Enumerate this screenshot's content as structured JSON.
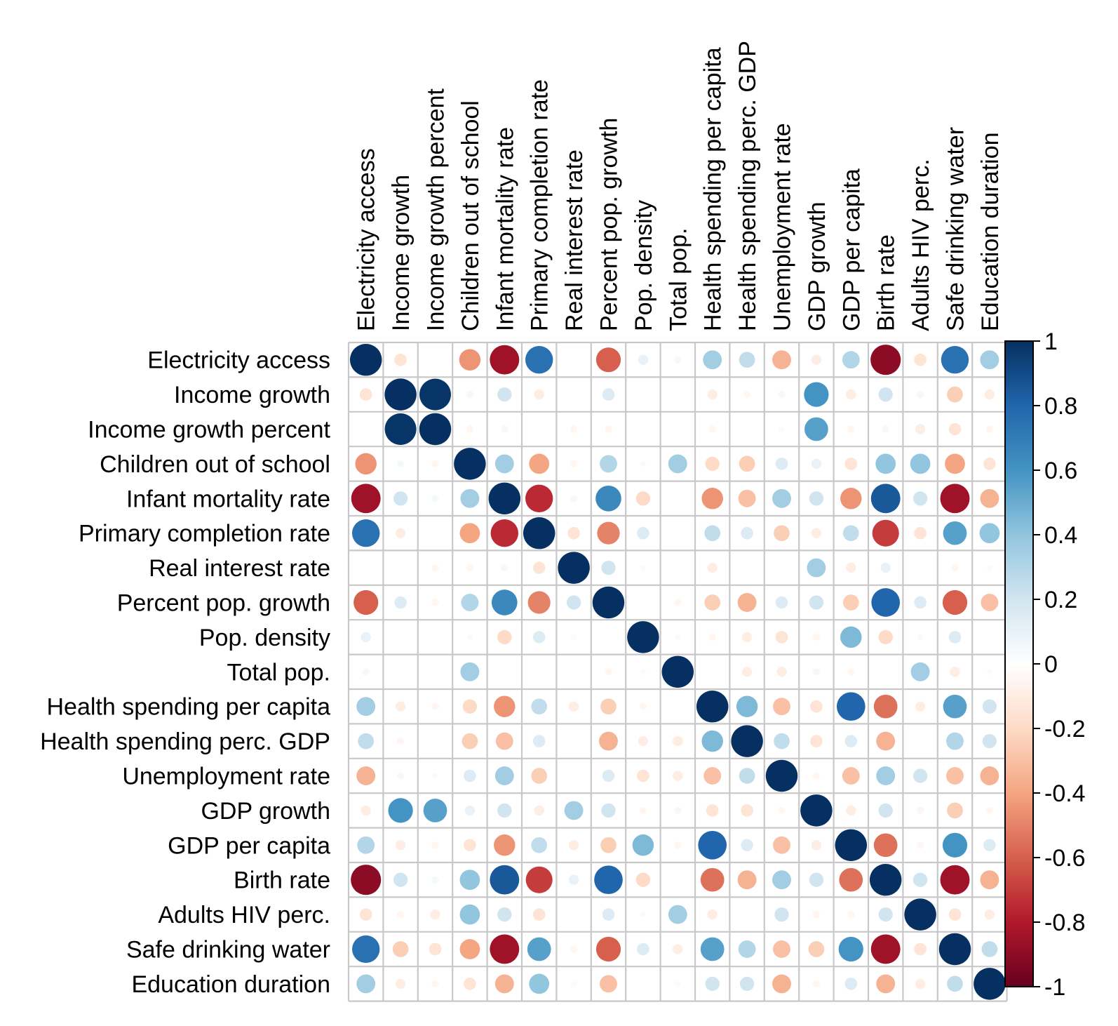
{
  "chart_data": {
    "type": "heatmap",
    "style": "circle correlation matrix",
    "variables": [
      "Electricity access",
      "Income growth",
      "Income growth percent",
      "Children out of school",
      "Infant mortality rate",
      "Primary completion rate",
      "Real interest rate",
      "Percent pop. growth",
      "Pop. density",
      "Total pop.",
      "Health spending per capita",
      "Health spending perc. GDP",
      "Unemployment rate",
      "GDP growth",
      "GDP per capita",
      "Birth rate",
      "Adults HIV perc.",
      "Safe drinking water",
      "Education duration"
    ],
    "matrix": [
      [
        1.0,
        -0.15,
        0.0,
        -0.45,
        -0.85,
        0.75,
        0.0,
        -0.6,
        0.1,
        0.05,
        0.35,
        0.25,
        -0.35,
        -0.1,
        0.3,
        -0.9,
        -0.15,
        0.75,
        0.35
      ],
      [
        -0.15,
        1.0,
        0.98,
        0.05,
        0.2,
        -0.1,
        0.0,
        0.15,
        0.0,
        0.0,
        -0.1,
        -0.05,
        0.05,
        0.6,
        -0.1,
        0.2,
        -0.05,
        -0.25,
        -0.1
      ],
      [
        0.0,
        0.98,
        1.0,
        -0.05,
        0.05,
        0.0,
        -0.05,
        -0.05,
        0.0,
        0.0,
        -0.05,
        0.0,
        0.03,
        0.55,
        -0.05,
        0.05,
        -0.1,
        -0.15,
        -0.05
      ],
      [
        -0.45,
        0.05,
        -0.05,
        1.0,
        0.35,
        -0.4,
        -0.05,
        0.3,
        0.03,
        0.35,
        -0.2,
        -0.25,
        0.15,
        0.1,
        -0.15,
        0.4,
        0.4,
        -0.4,
        -0.15
      ],
      [
        -0.85,
        0.2,
        0.05,
        0.35,
        1.0,
        -0.75,
        0.05,
        0.65,
        -0.2,
        0.0,
        -0.45,
        -0.3,
        0.35,
        0.2,
        -0.45,
        0.85,
        0.2,
        -0.85,
        -0.35
      ],
      [
        0.75,
        -0.1,
        0.0,
        -0.4,
        -0.75,
        1.0,
        -0.15,
        -0.5,
        0.15,
        0.0,
        0.25,
        0.15,
        -0.25,
        -0.1,
        0.25,
        -0.7,
        -0.15,
        0.55,
        0.4
      ],
      [
        0.0,
        0.0,
        -0.05,
        -0.05,
        0.05,
        -0.15,
        1.0,
        0.2,
        -0.03,
        0.0,
        -0.1,
        0.0,
        0.0,
        0.35,
        -0.1,
        0.1,
        0.0,
        -0.05,
        -0.03
      ],
      [
        -0.6,
        0.15,
        -0.05,
        0.3,
        0.65,
        -0.5,
        0.2,
        1.0,
        0.0,
        -0.05,
        -0.25,
        -0.35,
        0.15,
        0.2,
        -0.25,
        0.8,
        0.15,
        -0.6,
        -0.3
      ],
      [
        0.1,
        0.0,
        0.0,
        0.03,
        -0.2,
        0.15,
        -0.03,
        0.0,
        1.0,
        0.03,
        -0.05,
        -0.1,
        -0.15,
        -0.05,
        0.45,
        -0.2,
        0.03,
        0.15,
        0.0
      ],
      [
        0.05,
        0.0,
        0.0,
        0.35,
        0.0,
        0.0,
        0.0,
        -0.05,
        0.03,
        1.0,
        0.0,
        -0.1,
        -0.1,
        0.05,
        -0.05,
        0.0,
        0.35,
        -0.1,
        -0.03
      ],
      [
        0.35,
        -0.1,
        -0.05,
        -0.2,
        -0.45,
        0.25,
        -0.1,
        -0.25,
        -0.05,
        0.0,
        1.0,
        0.45,
        -0.3,
        -0.15,
        0.8,
        -0.55,
        -0.1,
        0.55,
        0.2
      ],
      [
        0.25,
        -0.05,
        0.0,
        -0.25,
        -0.3,
        0.15,
        0.0,
        -0.35,
        -0.1,
        -0.1,
        0.45,
        1.0,
        0.25,
        -0.15,
        0.15,
        -0.35,
        0.0,
        0.3,
        0.2
      ],
      [
        -0.35,
        0.05,
        0.03,
        0.15,
        0.35,
        -0.25,
        0.0,
        0.15,
        -0.15,
        -0.1,
        -0.3,
        0.25,
        1.0,
        -0.05,
        -0.3,
        0.35,
        0.2,
        -0.3,
        -0.35
      ],
      [
        -0.1,
        0.6,
        0.55,
        0.1,
        0.2,
        -0.1,
        0.35,
        0.2,
        -0.05,
        0.05,
        -0.15,
        -0.15,
        -0.05,
        1.0,
        -0.1,
        0.2,
        -0.05,
        -0.25,
        -0.05
      ],
      [
        0.3,
        -0.1,
        -0.05,
        -0.15,
        -0.45,
        0.25,
        -0.1,
        -0.25,
        0.45,
        -0.05,
        0.8,
        0.15,
        -0.3,
        -0.1,
        1.0,
        -0.55,
        -0.05,
        0.6,
        0.15
      ],
      [
        -0.9,
        0.2,
        0.05,
        0.4,
        0.85,
        -0.7,
        0.1,
        0.8,
        -0.2,
        0.0,
        -0.55,
        -0.35,
        0.35,
        0.2,
        -0.55,
        1.0,
        0.2,
        -0.85,
        -0.35
      ],
      [
        -0.15,
        -0.05,
        -0.1,
        0.4,
        0.2,
        -0.15,
        0.0,
        0.15,
        0.03,
        0.35,
        -0.1,
        0.0,
        0.2,
        -0.05,
        -0.05,
        0.2,
        1.0,
        -0.15,
        -0.1
      ],
      [
        0.75,
        -0.25,
        -0.15,
        -0.4,
        -0.85,
        0.55,
        -0.05,
        -0.6,
        0.15,
        -0.1,
        0.55,
        0.3,
        -0.3,
        -0.25,
        0.6,
        -0.85,
        -0.15,
        1.0,
        0.25
      ],
      [
        0.35,
        -0.1,
        -0.05,
        -0.15,
        -0.35,
        0.4,
        -0.03,
        -0.3,
        0.0,
        -0.03,
        0.2,
        0.2,
        -0.35,
        -0.05,
        0.15,
        -0.35,
        -0.1,
        0.25,
        1.0
      ]
    ],
    "colorbar": {
      "range": [
        -1,
        1
      ],
      "tick_labels": [
        "1",
        "0.8",
        "0.6",
        "0.4",
        "0.2",
        "0",
        "-0.2",
        "-0.4",
        "-0.6",
        "-0.8",
        "-1"
      ],
      "tick_values": [
        1,
        0.8,
        0.6,
        0.4,
        0.2,
        0,
        -0.2,
        -0.4,
        -0.6,
        -0.8,
        -1
      ],
      "colors": [
        "#67001F",
        "#B2182B",
        "#D6604D",
        "#F4A582",
        "#FDDBC7",
        "#FFFFFF",
        "#D1E5F0",
        "#92C5DE",
        "#4393C3",
        "#2166AC",
        "#053061"
      ]
    },
    "grid": true,
    "legend_placement": "right"
  }
}
